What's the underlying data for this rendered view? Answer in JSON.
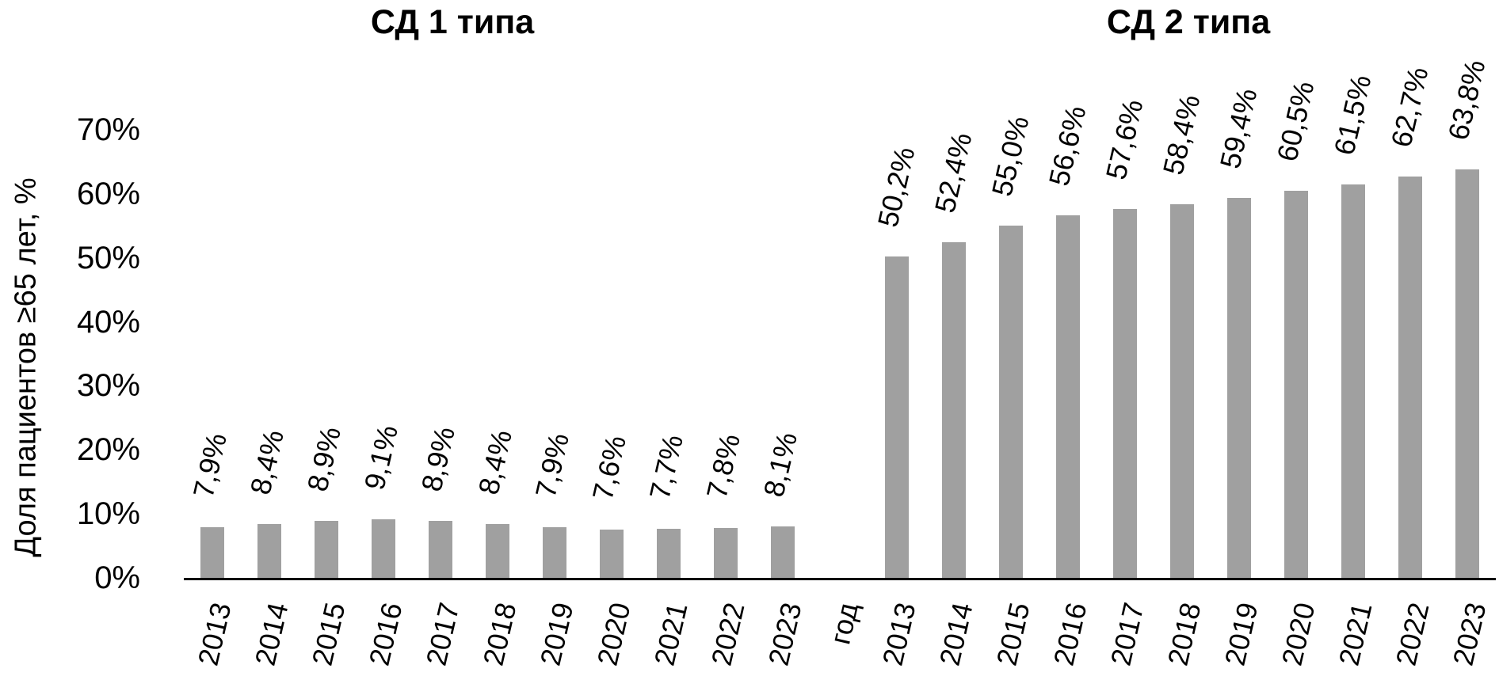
{
  "y_axis": {
    "label": "Доля пациентов ≥65 лет, %",
    "ticks": [
      "0%",
      "10%",
      "20%",
      "30%",
      "40%",
      "50%",
      "60%",
      "70%"
    ],
    "ylim": [
      0,
      70
    ]
  },
  "x_axis": {
    "label": "год"
  },
  "colors": {
    "bar": "#a0a0a0",
    "axis": "#000000",
    "text": "#000000",
    "background": "#ffffff"
  },
  "chart_data": [
    {
      "type": "bar",
      "title": "СД 1 типа",
      "categories": [
        "2013",
        "2014",
        "2015",
        "2016",
        "2017",
        "2018",
        "2019",
        "2020",
        "2021",
        "2022",
        "2023"
      ],
      "values": [
        7.9,
        8.4,
        8.9,
        9.1,
        8.9,
        8.4,
        7.9,
        7.6,
        7.7,
        7.8,
        8.1
      ],
      "value_labels": [
        "7,9%",
        "8,4%",
        "8,9%",
        "9,1%",
        "8,9%",
        "8,4%",
        "7,9%",
        "7,6%",
        "7,7%",
        "7,8%",
        "8,1%"
      ],
      "xlabel": "год",
      "ylabel": "Доля пациентов ≥65 лет, %",
      "ylim": [
        0,
        70
      ],
      "grid": false,
      "legend": false
    },
    {
      "type": "bar",
      "title": "СД 2 типа",
      "categories": [
        "2013",
        "2014",
        "2015",
        "2016",
        "2017",
        "2018",
        "2019",
        "2020",
        "2021",
        "2022",
        "2023"
      ],
      "values": [
        50.2,
        52.4,
        55.0,
        56.6,
        57.6,
        58.4,
        59.4,
        60.5,
        61.5,
        62.7,
        63.8
      ],
      "value_labels": [
        "50,2%",
        "52,4%",
        "55,0%",
        "56,6%",
        "57,6%",
        "58,4%",
        "59,4%",
        "60,5%",
        "61,5%",
        "62,7%",
        "63,8%"
      ],
      "xlabel": "год",
      "ylabel": "Доля пациентов ≥65 лет, %",
      "ylim": [
        0,
        70
      ],
      "grid": false,
      "legend": false
    }
  ]
}
